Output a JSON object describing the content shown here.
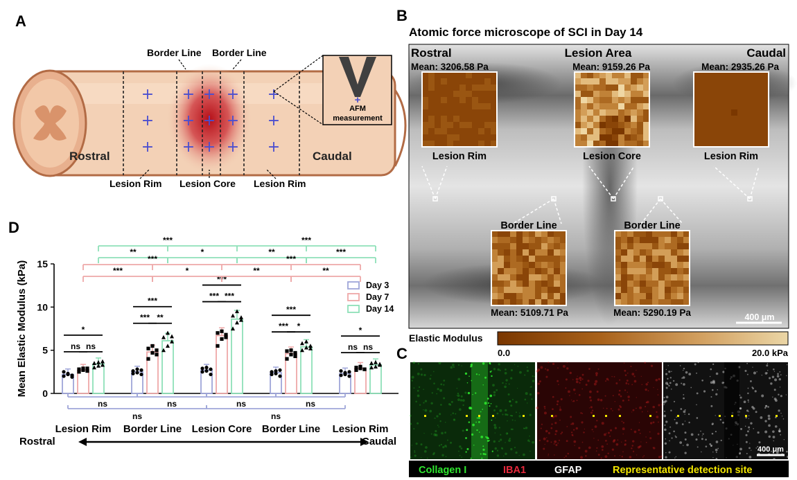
{
  "panels": {
    "a": {
      "letter": "A",
      "border_line_left": "Border Line",
      "border_line_right": "Border Line",
      "rostral": "Rostral",
      "caudal": "Caudal",
      "lesion_rim_left": "Lesion Rim",
      "lesion_core": "Lesion Core",
      "lesion_rim_right": "Lesion Rim",
      "afm_label_1": "AFM",
      "afm_label_2": "measurement",
      "colors": {
        "tissue": "#F3D1B6",
        "tissue_edge": "#B26B45",
        "lesion": "#C9141C",
        "marker": "#4B4FCF"
      }
    },
    "b": {
      "letter": "B",
      "title": "Atomic force microscope of SCI in Day 14",
      "rostral": "Rostral",
      "lesion_area": "Lesion Area",
      "caudal": "Caudal",
      "mean_rostral": "Mean: 3206.58 Pa",
      "mean_lesion": "Mean: 9159.26 Pa",
      "mean_caudal": "Mean: 2935.26 Pa",
      "label_rim_left": "Lesion Rim",
      "label_core": "Lesion Core",
      "label_rim_right": "Lesion Rim",
      "label_border_left": "Border Line",
      "label_border_right": "Border Line",
      "mean_border_left": "Mean: 5109.71 Pa",
      "mean_border_right": "Mean: 5290.19 Pa",
      "scale_bar": "400 μm",
      "colorbar_title": "Elastic Modulus",
      "colorbar_min": "0.0",
      "colorbar_max": "20.0 kPa"
    },
    "c": {
      "letter": "C",
      "scale_bar": "400 μm",
      "legend": [
        {
          "text": "Collagen I",
          "color": "#2EE62E"
        },
        {
          "text": "IBA1",
          "color": "#E8283C"
        },
        {
          "text": "GFAP",
          "color": "#FFFFFF"
        },
        {
          "text": "Representative detection site",
          "color": "#F2E600"
        }
      ]
    },
    "d": {
      "letter": "D",
      "rostral": "Rostral",
      "caudal": "Caudal"
    }
  },
  "chart_data": {
    "type": "bar",
    "ylabel": "Mean Elastic Modulus (kPa)",
    "ylim": [
      0,
      15
    ],
    "yticks": [
      "0",
      "5",
      "10",
      "15"
    ],
    "categories": [
      "Lesion Rim",
      "Border Line",
      "Lesion Core",
      "Border Line",
      "Lesion Rim"
    ],
    "legend_position": "top-right",
    "series": [
      {
        "name": "Day 3",
        "color": "#9FA6D9",
        "marker": "circle",
        "values": [
          2.2,
          2.5,
          2.7,
          2.4,
          2.3
        ],
        "points": [
          [
            2.0,
            2.3,
            1.9,
            2.5,
            2.2,
            2.1
          ],
          [
            2.3,
            2.8,
            2.2,
            2.6,
            2.4,
            2.7
          ],
          [
            2.5,
            3.0,
            2.2,
            2.9,
            2.6,
            2.8
          ],
          [
            2.2,
            2.6,
            2.0,
            2.5,
            2.3,
            2.7
          ],
          [
            2.1,
            2.4,
            2.0,
            2.6,
            2.2,
            2.5
          ]
        ]
      },
      {
        "name": "Day 7",
        "color": "#EEA8A8",
        "marker": "square",
        "values": [
          2.7,
          4.8,
          6.7,
          4.6,
          2.9
        ],
        "points": [
          [
            2.5,
            2.9,
            2.6,
            2.8,
            2.7,
            2.9
          ],
          [
            4.0,
            5.5,
            4.5,
            5.2,
            4.7,
            5.0
          ],
          [
            5.5,
            7.2,
            6.5,
            7.0,
            6.3,
            6.8
          ],
          [
            4.0,
            5.0,
            4.3,
            4.9,
            4.5,
            4.7
          ],
          [
            2.7,
            3.1,
            2.8,
            3.0,
            2.9,
            2.8
          ]
        ]
      },
      {
        "name": "Day 14",
        "color": "#8EE0B8",
        "marker": "triangle",
        "values": [
          3.4,
          6.1,
          8.6,
          5.4,
          3.3
        ],
        "points": [
          [
            3.0,
            3.6,
            3.3,
            3.5,
            3.2,
            3.7
          ],
          [
            5.0,
            7.0,
            6.0,
            6.5,
            5.5,
            6.6
          ],
          [
            7.5,
            9.5,
            8.5,
            9.0,
            8.2,
            8.8
          ],
          [
            5.0,
            6.0,
            5.2,
            5.8,
            5.3,
            5.5
          ],
          [
            3.0,
            3.6,
            3.3,
            3.5,
            3.1,
            3.4
          ]
        ]
      }
    ],
    "significance_within": [
      {
        "group": 0,
        "pairs": [
          [
            "ns",
            0,
            1
          ],
          [
            "ns",
            1,
            2
          ],
          [
            "*",
            0,
            2
          ]
        ]
      },
      {
        "group": 1,
        "pairs": [
          [
            "***",
            0,
            1
          ],
          [
            "**",
            1,
            2
          ],
          [
            "***",
            0,
            2
          ]
        ]
      },
      {
        "group": 2,
        "pairs": [
          [
            "***",
            0,
            1
          ],
          [
            "***",
            1,
            2
          ],
          [
            "***",
            0,
            2
          ]
        ]
      },
      {
        "group": 3,
        "pairs": [
          [
            "***",
            0,
            1
          ],
          [
            "*",
            1,
            2
          ],
          [
            "***",
            0,
            2
          ]
        ]
      },
      {
        "group": 4,
        "pairs": [
          [
            "ns",
            0,
            1
          ],
          [
            "ns",
            1,
            2
          ],
          [
            "*",
            0,
            2
          ]
        ]
      }
    ],
    "significance_between_day14": [
      [
        "**",
        0,
        1
      ],
      [
        "*",
        1,
        2
      ],
      [
        "**",
        2,
        3
      ],
      [
        "***",
        3,
        4
      ],
      [
        "***",
        0,
        2
      ],
      [
        "***",
        2,
        4
      ]
    ],
    "significance_between_day7": [
      [
        "***",
        0,
        1
      ],
      [
        "*",
        1,
        2
      ],
      [
        "**",
        2,
        3
      ],
      [
        "**",
        3,
        4
      ],
      [
        "***",
        0,
        2
      ],
      [
        "***",
        2,
        4
      ]
    ],
    "significance_between_day3": [
      [
        "ns",
        0,
        1
      ],
      [
        "ns",
        1,
        2
      ],
      [
        "ns",
        2,
        3
      ],
      [
        "ns",
        3,
        4
      ],
      [
        "ns",
        0,
        2
      ],
      [
        "ns",
        2,
        4
      ]
    ]
  }
}
